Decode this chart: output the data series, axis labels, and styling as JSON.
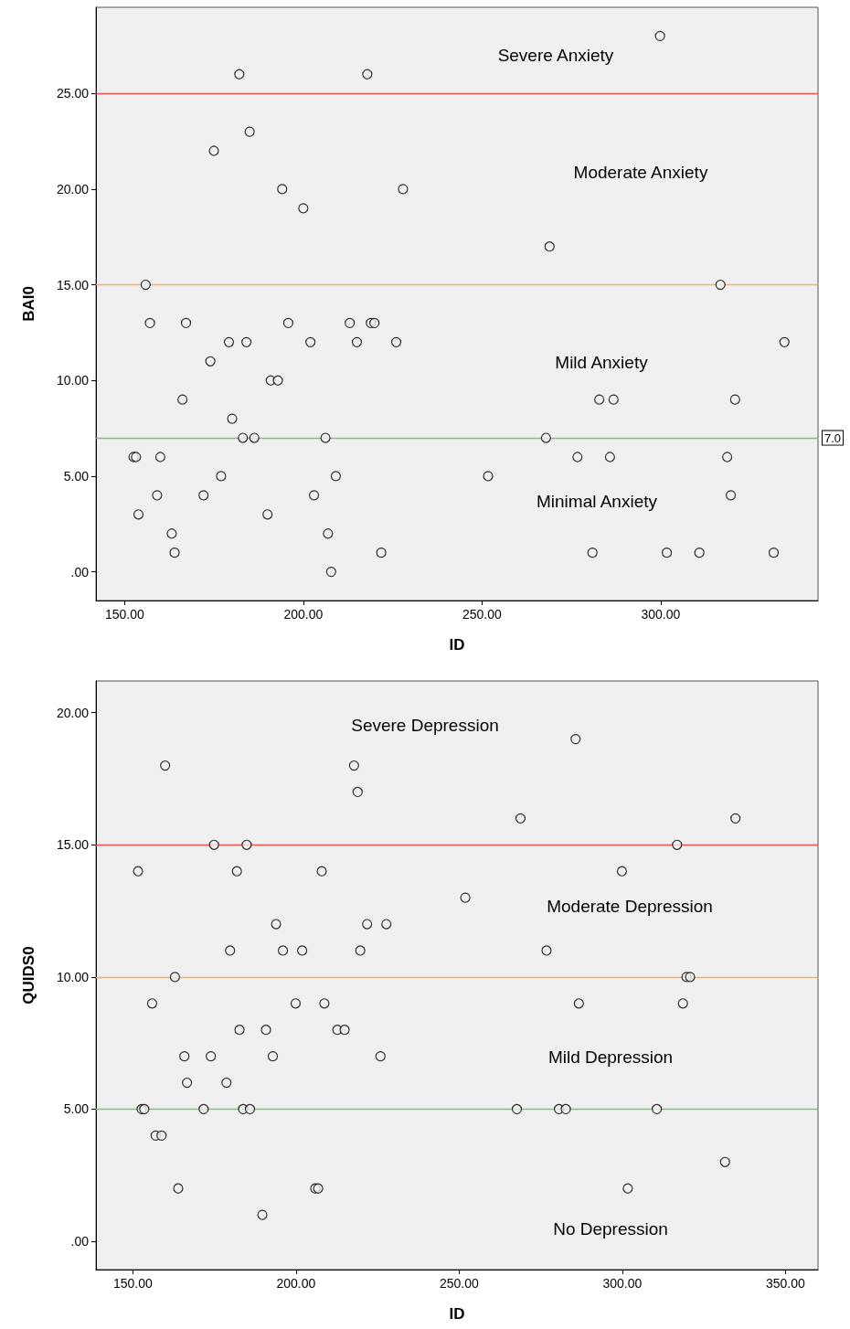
{
  "chart_data": [
    {
      "type": "scatter",
      "xlabel": "ID",
      "ylabel": "BAI0",
      "marker": "circle",
      "xlim": [
        142,
        344
      ],
      "ylim": [
        -1.5,
        29.5
      ],
      "xticks": [
        {
          "value": 150,
          "label": "150.00"
        },
        {
          "value": 200,
          "label": "200.00"
        },
        {
          "value": 250,
          "label": "250.00"
        },
        {
          "value": 300,
          "label": "300.00"
        }
      ],
      "yticks": [
        {
          "value": 0,
          "label": ".00"
        },
        {
          "value": 5,
          "label": "5.00"
        },
        {
          "value": 10,
          "label": "10.00"
        },
        {
          "value": 15,
          "label": "15.00"
        },
        {
          "value": 20,
          "label": "20.00"
        },
        {
          "value": 25,
          "label": "25.00"
        }
      ],
      "series": [
        {
          "color": "#000000",
          "x": [
            152.5,
            153.2,
            153.9,
            155.9,
            157.1,
            159.1,
            160,
            163.2,
            164,
            166.2,
            167.2,
            172.1,
            174,
            175,
            177,
            179.2,
            180.1,
            182.1,
            183.1,
            184.1,
            185,
            186.3,
            190,
            190.9,
            192.9,
            194.1,
            195.8,
            200,
            202,
            203,
            206.2,
            206.9,
            207.8,
            209.1,
            213,
            215,
            217.9,
            218.9,
            219.9,
            221.8,
            226,
            227.9,
            251.7,
            267.9,
            268.9,
            276.7,
            280.9,
            282.8,
            285.8,
            286.8,
            299.8,
            301.7,
            310.8,
            316.7,
            318.6,
            319.6,
            320.8,
            331.6,
            334.6
          ],
          "values": [
            6,
            6,
            3,
            15,
            13,
            4,
            6,
            2,
            1,
            9,
            13,
            4,
            11,
            22,
            5,
            12,
            8,
            26,
            7,
            12,
            23,
            7,
            3,
            10,
            10,
            20,
            13,
            19,
            12,
            4,
            7,
            2,
            0,
            5,
            13,
            12,
            26,
            13,
            13,
            1,
            12,
            20,
            5,
            7,
            17,
            6,
            1,
            9,
            6,
            9,
            28,
            1,
            1,
            15,
            6,
            4,
            9,
            1,
            12
          ]
        }
      ],
      "ref_lines": [
        {
          "axis": "y",
          "value": 25,
          "color": "#f05050"
        },
        {
          "axis": "y",
          "value": 15,
          "color": "#ffb050"
        },
        {
          "axis": "y",
          "value": 7,
          "color": "#70c870",
          "label": "7.0"
        }
      ],
      "annotations": [
        "Severe Anxiety",
        "Moderate Anxiety",
        "Mild Anxiety",
        "Minimal Anxiety"
      ]
    },
    {
      "type": "scatter",
      "xlabel": "ID",
      "ylabel": "QUIDS0",
      "marker": "circle",
      "xlim": [
        138.7,
        360
      ],
      "ylim": [
        -1.07,
        21.2
      ],
      "xticks": [
        {
          "value": 150,
          "label": "150.00"
        },
        {
          "value": 200,
          "label": "200.00"
        },
        {
          "value": 250,
          "label": "250.00"
        },
        {
          "value": 300,
          "label": "300.00"
        },
        {
          "value": 350,
          "label": "350.00"
        }
      ],
      "yticks": [
        {
          "value": 0,
          "label": ".00"
        },
        {
          "value": 5,
          "label": "5.00"
        },
        {
          "value": 10,
          "label": "10.00"
        },
        {
          "value": 15,
          "label": "15.00"
        },
        {
          "value": 20,
          "label": "20.00"
        }
      ],
      "series": [
        {
          "color": "#000000",
          "x": [
            151.6,
            152.7,
            153.5,
            155.9,
            157,
            158.8,
            159.9,
            162.9,
            163.9,
            165.8,
            166.6,
            171.7,
            173.9,
            174.9,
            178.7,
            179.8,
            181.9,
            182.7,
            183.8,
            184.9,
            185.9,
            189.7,
            190.8,
            192.9,
            193.9,
            196,
            199.9,
            201.9,
            205.9,
            206.8,
            207.9,
            208.7,
            212.7,
            214.9,
            217.8,
            218.9,
            219.7,
            221.8,
            225.9,
            227.7,
            251.9,
            267.7,
            268.8,
            276.8,
            280.6,
            282.7,
            285.7,
            286.7,
            299.9,
            301.7,
            310.6,
            316.8,
            318.6,
            319.7,
            320.8,
            331.5,
            334.7
          ],
          "values": [
            14,
            5,
            5,
            9,
            4,
            4,
            18,
            10,
            2,
            7,
            6,
            5,
            7,
            15,
            6,
            11,
            14,
            8,
            5,
            15,
            5,
            1,
            8,
            7,
            12,
            11,
            9,
            11,
            2,
            2,
            14,
            9,
            8,
            8,
            18,
            17,
            11,
            12,
            7,
            12,
            13,
            5,
            16,
            11,
            5,
            5,
            19,
            9,
            14,
            2,
            5,
            15,
            9,
            10,
            10,
            3,
            16
          ]
        }
      ],
      "ref_lines": [
        {
          "axis": "y",
          "value": 15,
          "color": "#f05050"
        },
        {
          "axis": "y",
          "value": 10,
          "color": "#ffb050"
        },
        {
          "axis": "y",
          "value": 5,
          "color": "#70c870"
        }
      ],
      "annotations": [
        "Severe Depression",
        "Moderate Depression",
        "Mild Depression",
        "No Depression"
      ]
    }
  ]
}
